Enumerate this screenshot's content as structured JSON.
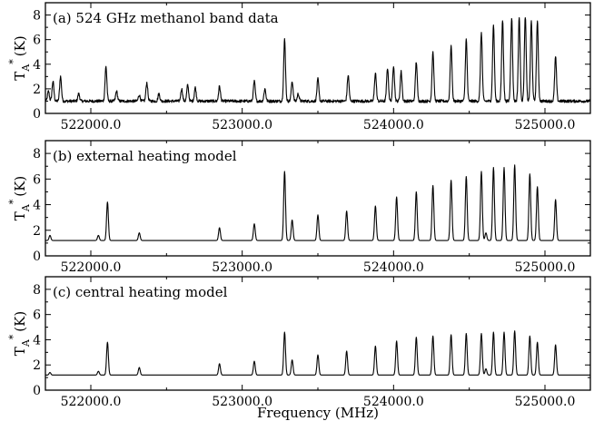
{
  "chart_data": [
    {
      "type": "line",
      "panel_label": "(a) 524 GHz methanol band data",
      "xlabel": "",
      "ylabel": "T_A^* (K)",
      "ylabel_parts": {
        "main": "T",
        "sub": "A",
        "sup": "*",
        "unit": "(K)"
      },
      "xlim": [
        521700,
        525300
      ],
      "ylim": [
        0,
        9
      ],
      "yticks": [
        0,
        2,
        4,
        6,
        8
      ],
      "xticks": [
        522000,
        523000,
        524000,
        525000
      ],
      "xtick_labels": [
        "522000.0",
        "523000.0",
        "524000.0",
        "525000.0"
      ],
      "show_xtick_labels": true,
      "baseline": 1.0,
      "noise": 0.12,
      "peak_width": 6,
      "peaks": [
        {
          "x": 521720,
          "y": 1.8
        },
        {
          "x": 521750,
          "y": 2.6
        },
        {
          "x": 521800,
          "y": 3.0
        },
        {
          "x": 521920,
          "y": 1.6
        },
        {
          "x": 522100,
          "y": 3.8
        },
        {
          "x": 522170,
          "y": 1.8
        },
        {
          "x": 522320,
          "y": 1.5
        },
        {
          "x": 522370,
          "y": 2.5
        },
        {
          "x": 522450,
          "y": 1.6
        },
        {
          "x": 522600,
          "y": 2.0
        },
        {
          "x": 522640,
          "y": 2.3
        },
        {
          "x": 522690,
          "y": 2.1
        },
        {
          "x": 522850,
          "y": 2.2
        },
        {
          "x": 523080,
          "y": 2.6
        },
        {
          "x": 523150,
          "y": 2.0
        },
        {
          "x": 523280,
          "y": 6.0
        },
        {
          "x": 523330,
          "y": 2.6
        },
        {
          "x": 523370,
          "y": 1.6
        },
        {
          "x": 523500,
          "y": 2.8
        },
        {
          "x": 523700,
          "y": 3.1
        },
        {
          "x": 523880,
          "y": 3.3
        },
        {
          "x": 523960,
          "y": 3.7
        },
        {
          "x": 524000,
          "y": 3.9
        },
        {
          "x": 524050,
          "y": 3.4
        },
        {
          "x": 524150,
          "y": 4.2
        },
        {
          "x": 524260,
          "y": 5.0
        },
        {
          "x": 524380,
          "y": 5.5
        },
        {
          "x": 524480,
          "y": 6.0
        },
        {
          "x": 524580,
          "y": 6.6
        },
        {
          "x": 524660,
          "y": 7.2
        },
        {
          "x": 524720,
          "y": 7.6
        },
        {
          "x": 524780,
          "y": 7.8
        },
        {
          "x": 524830,
          "y": 7.8
        },
        {
          "x": 524870,
          "y": 7.9
        },
        {
          "x": 524910,
          "y": 7.5
        },
        {
          "x": 524950,
          "y": 7.5
        },
        {
          "x": 525070,
          "y": 4.6
        }
      ]
    },
    {
      "type": "line",
      "panel_label": "(b) external heating model",
      "xlabel": "",
      "ylabel": "T_A^* (K)",
      "ylabel_parts": {
        "main": "T",
        "sub": "A",
        "sup": "*",
        "unit": "(K)"
      },
      "xlim": [
        521700,
        525300
      ],
      "ylim": [
        0,
        9
      ],
      "yticks": [
        0,
        2,
        4,
        6,
        8
      ],
      "xticks": [
        522000,
        523000,
        524000,
        525000
      ],
      "xtick_labels": [
        "522000.0",
        "523000.0",
        "524000.0",
        "525000.0"
      ],
      "show_xtick_labels": true,
      "baseline": 1.2,
      "noise": 0,
      "peak_width": 6,
      "peaks": [
        {
          "x": 521730,
          "y": 1.6
        },
        {
          "x": 522050,
          "y": 1.6
        },
        {
          "x": 522110,
          "y": 4.2
        },
        {
          "x": 522320,
          "y": 1.8
        },
        {
          "x": 522850,
          "y": 2.2
        },
        {
          "x": 523080,
          "y": 2.5
        },
        {
          "x": 523280,
          "y": 6.6
        },
        {
          "x": 523330,
          "y": 2.8
        },
        {
          "x": 523500,
          "y": 3.2
        },
        {
          "x": 523690,
          "y": 3.5
        },
        {
          "x": 523880,
          "y": 3.9
        },
        {
          "x": 524020,
          "y": 4.6
        },
        {
          "x": 524150,
          "y": 5.0
        },
        {
          "x": 524260,
          "y": 5.5
        },
        {
          "x": 524380,
          "y": 5.9
        },
        {
          "x": 524480,
          "y": 6.2
        },
        {
          "x": 524580,
          "y": 6.6
        },
        {
          "x": 524610,
          "y": 1.8
        },
        {
          "x": 524660,
          "y": 6.9
        },
        {
          "x": 524730,
          "y": 6.9
        },
        {
          "x": 524800,
          "y": 7.1
        },
        {
          "x": 524900,
          "y": 6.4
        },
        {
          "x": 524950,
          "y": 5.4
        },
        {
          "x": 525070,
          "y": 4.4
        }
      ]
    },
    {
      "type": "line",
      "panel_label": "(c) central heating model",
      "xlabel": "Frequency (MHz)",
      "ylabel": "T_A^* (K)",
      "ylabel_parts": {
        "main": "T",
        "sub": "A",
        "sup": "*",
        "unit": "(K)"
      },
      "xlim": [
        521700,
        525300
      ],
      "ylim": [
        0,
        9
      ],
      "yticks": [
        0,
        2,
        4,
        6,
        8
      ],
      "xticks": [
        522000,
        523000,
        524000,
        525000
      ],
      "xtick_labels": [
        "522000.0",
        "523000.0",
        "524000.0",
        "525000.0"
      ],
      "show_xtick_labels": true,
      "baseline": 1.2,
      "noise": 0,
      "peak_width": 6,
      "peaks": [
        {
          "x": 521730,
          "y": 1.4
        },
        {
          "x": 522050,
          "y": 1.5
        },
        {
          "x": 522110,
          "y": 3.8
        },
        {
          "x": 522320,
          "y": 1.8
        },
        {
          "x": 522850,
          "y": 2.1
        },
        {
          "x": 523080,
          "y": 2.3
        },
        {
          "x": 523280,
          "y": 4.6
        },
        {
          "x": 523330,
          "y": 2.4
        },
        {
          "x": 523500,
          "y": 2.8
        },
        {
          "x": 523690,
          "y": 3.1
        },
        {
          "x": 523880,
          "y": 3.5
        },
        {
          "x": 524020,
          "y": 3.9
        },
        {
          "x": 524150,
          "y": 4.2
        },
        {
          "x": 524260,
          "y": 4.3
        },
        {
          "x": 524380,
          "y": 4.4
        },
        {
          "x": 524480,
          "y": 4.5
        },
        {
          "x": 524580,
          "y": 4.5
        },
        {
          "x": 524610,
          "y": 1.7
        },
        {
          "x": 524660,
          "y": 4.6
        },
        {
          "x": 524730,
          "y": 4.6
        },
        {
          "x": 524800,
          "y": 4.7
        },
        {
          "x": 524900,
          "y": 4.3
        },
        {
          "x": 524950,
          "y": 3.8
        },
        {
          "x": 525070,
          "y": 3.6
        }
      ]
    }
  ]
}
